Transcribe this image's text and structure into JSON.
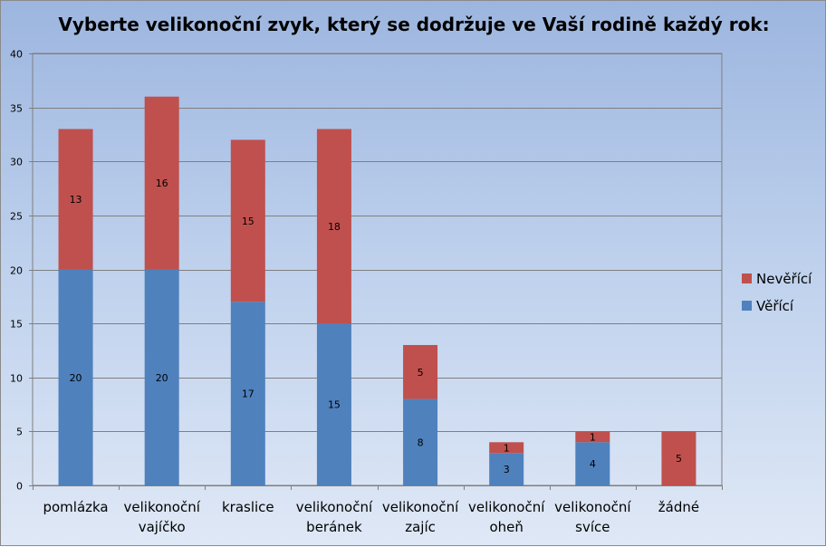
{
  "chart_data": {
    "type": "bar",
    "stacked": true,
    "title": "Vyberte velikonoční zvyk, který se dodržuje ve Vaší rodině každý rok:",
    "categories": [
      [
        "pomlázka"
      ],
      [
        "velikonoční",
        "vajíčko"
      ],
      [
        "kraslice"
      ],
      [
        "velikonoční",
        "beránek"
      ],
      [
        "velikonoční",
        "zajíc"
      ],
      [
        "velikonoční",
        "oheň"
      ],
      [
        "velikonoční",
        "svíce"
      ],
      [
        "žádné"
      ]
    ],
    "series": [
      {
        "name": "Věřící",
        "color": "#4f81bd",
        "values": [
          20,
          20,
          17,
          15,
          8,
          3,
          4,
          0
        ]
      },
      {
        "name": "Nevěřící",
        "color": "#c0504d",
        "values": [
          13,
          16,
          15,
          18,
          5,
          1,
          1,
          5
        ]
      }
    ],
    "ylim": [
      0,
      40
    ],
    "yticks": [
      0,
      5,
      10,
      15,
      20,
      25,
      30,
      35,
      40
    ],
    "grid": true,
    "legend": "right"
  }
}
